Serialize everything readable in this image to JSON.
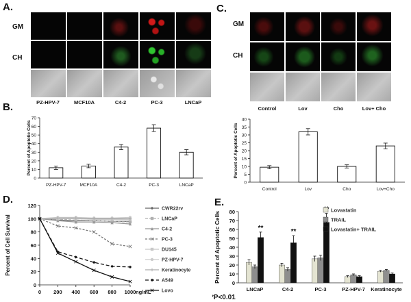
{
  "panels": {
    "A": {
      "letter": "A.",
      "rows": [
        "GM",
        "CH"
      ],
      "columns": [
        "PZ-HPV-7",
        "MCF10A",
        "C4-2",
        "PC-3",
        "LNCaP"
      ]
    },
    "C": {
      "letter": "C.",
      "rows": [
        "GM",
        "CH"
      ],
      "columns": [
        "Control",
        "Lov",
        "Cho",
        "Lov+ Cho"
      ]
    },
    "B": {
      "letter": "B."
    },
    "D": {
      "letter": "D."
    },
    "E": {
      "letter": "E.",
      "footnote": "**P<0.01"
    }
  },
  "chart_data": [
    {
      "id": "B",
      "type": "bar",
      "categories": [
        "PZ-HPV-7",
        "MCF10A",
        "C4-2",
        "PC-3",
        "LNCaP"
      ],
      "values": [
        12,
        14,
        36,
        58,
        30
      ],
      "errors": [
        2,
        2,
        3,
        4,
        3
      ],
      "ylabel": "Percent of Apoptotic Cells",
      "ylim": [
        0,
        70
      ],
      "yticks": [
        0,
        10,
        20,
        30,
        40,
        50,
        60,
        70
      ],
      "bar_color": "#ffffff"
    },
    {
      "id": "C-chart",
      "type": "bar",
      "categories": [
        "Control",
        "Lov",
        "Cho",
        "Lov+Cho"
      ],
      "values": [
        9.5,
        32,
        10,
        23
      ],
      "errors": [
        1,
        2,
        1,
        1.8
      ],
      "ylabel": "Percent of Apoptotic Cells",
      "ylim": [
        0,
        40
      ],
      "yticks": [
        0,
        5,
        10,
        15,
        20,
        25,
        30,
        35,
        40
      ],
      "bar_color": "#ffffff"
    },
    {
      "id": "D",
      "type": "line",
      "x": [
        0,
        200,
        400,
        600,
        800,
        1000
      ],
      "xlabel": "ng/mL",
      "ylabel": "Percent of Cell Survival",
      "xlim": [
        0,
        1000
      ],
      "ylim": [
        0,
        120
      ],
      "xticks": [
        0,
        200,
        400,
        600,
        800,
        1000
      ],
      "yticks": [
        0,
        20,
        40,
        60,
        80,
        100,
        120
      ],
      "series": [
        {
          "name": "CWR22rv",
          "values": [
            100,
            98,
            97,
            97,
            96,
            96
          ],
          "color": "#666666",
          "marker": "diamond",
          "dash": ""
        },
        {
          "name": "LNCaP",
          "values": [
            100,
            99,
            98,
            97,
            96,
            95
          ],
          "color": "#b0b0b0",
          "marker": "square",
          "dash": "4,2"
        },
        {
          "name": "C4-2",
          "values": [
            100,
            97,
            95,
            95,
            94,
            92
          ],
          "color": "#999999",
          "marker": "triangle",
          "dash": ""
        },
        {
          "name": "PC-3",
          "values": [
            100,
            89,
            86,
            80,
            62,
            58
          ],
          "color": "#777777",
          "marker": "x",
          "dash": "3,2"
        },
        {
          "name": "DU145",
          "values": [
            100,
            100,
            100,
            99,
            99,
            99
          ],
          "color": "#c8c8c8",
          "marker": "square",
          "dash": ""
        },
        {
          "name": "PZ-HPV-7",
          "values": [
            100,
            102,
            102,
            101,
            101,
            102
          ],
          "color": "#cccccc",
          "marker": "circle",
          "dash": ""
        },
        {
          "name": "Keratinocyte",
          "values": [
            100,
            101,
            101,
            100,
            100,
            100
          ],
          "color": "#aaaaaa",
          "marker": "plus",
          "dash": ""
        },
        {
          "name": "A549",
          "values": [
            100,
            50,
            42,
            34,
            28,
            27
          ],
          "color": "#111111",
          "marker": "diamond",
          "dash": "5,3"
        },
        {
          "name": "Lovo",
          "values": [
            100,
            48,
            35,
            22,
            12,
            5
          ],
          "color": "#111111",
          "marker": "x",
          "dash": ""
        }
      ]
    },
    {
      "id": "E",
      "type": "bar",
      "categories": [
        "LNCaP",
        "C4-2",
        "PC-3",
        "PZ-HPV-7",
        "Keratinocyte"
      ],
      "ylabel": "Percent of Apoptotic Cells",
      "ylim": [
        0,
        80
      ],
      "yticks": [
        0,
        10,
        20,
        30,
        40,
        50,
        60,
        70,
        80
      ],
      "significance": [
        "**",
        "**",
        "**",
        "",
        ""
      ],
      "legend": "top-right",
      "series": [
        {
          "name": "Lovastatin",
          "values": [
            23,
            20,
            27,
            7,
            13
          ],
          "errors": [
            3,
            2,
            3,
            1,
            1
          ],
          "color": "#e4e4d2"
        },
        {
          "name": "TRAIL",
          "values": [
            18,
            15,
            28,
            9,
            14
          ],
          "errors": [
            2,
            2,
            3,
            1,
            1
          ],
          "color": "#8e8e8e"
        },
        {
          "name": "Lovastatin+ TRAIL",
          "values": [
            51,
            45,
            68,
            7,
            10
          ],
          "errors": [
            6,
            8,
            10,
            1,
            1
          ],
          "color": "#111111"
        }
      ]
    }
  ]
}
